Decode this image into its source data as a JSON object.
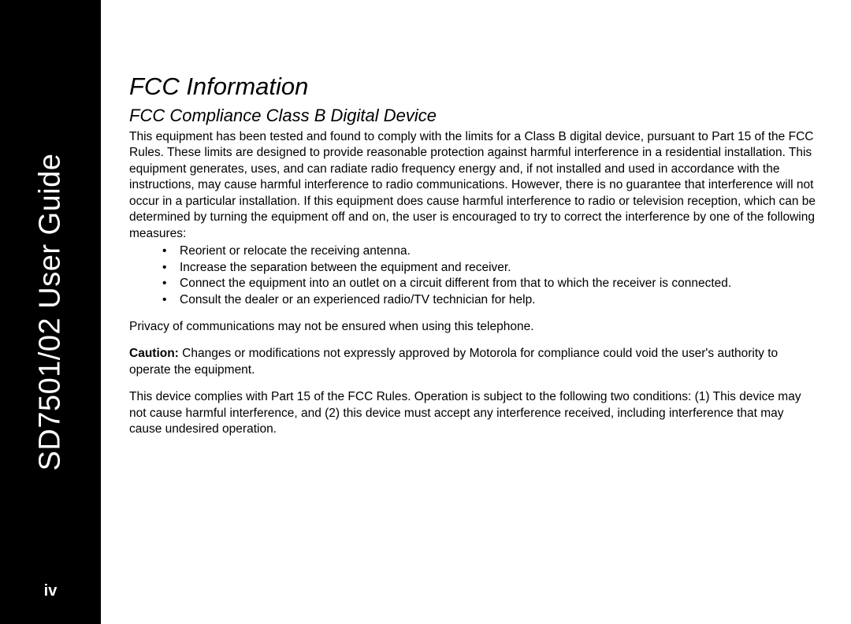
{
  "sidebar": {
    "spine": "SD7501/02 User Guide",
    "page_number": "iv"
  },
  "headings": {
    "title": "FCC Information",
    "subtitle": "FCC Compliance Class B Digital Device"
  },
  "body": {
    "intro": "This equipment has been tested and found to comply with the limits for a Class B digital device, pursuant to Part 15 of the FCC Rules. These limits are designed to provide reasonable protection against harmful interference in a residential installation. This equipment generates, uses, and can radiate radio frequency energy and, if not installed and used in accordance with the instructions, may cause harmful interference to radio communications. However, there is no guarantee that interference will not occur in a particular installation. If this equipment does cause harmful interference to radio or television reception, which can be determined by turning the equipment off and on, the user is encouraged to try to correct the interference by one of the following measures:",
    "bullets": [
      "Reorient or relocate the receiving antenna.",
      "Increase the separation between the equipment and receiver.",
      "Connect the equipment into an outlet on a circuit different from that to which the receiver is connected.",
      "Consult the dealer or an experienced radio/TV technician for help."
    ],
    "privacy": "Privacy of communications may not be ensured when using this telephone.",
    "caution_label": "Caution:",
    "caution_text": " Changes or modifications not expressly approved by Motorola for compliance could void the user's authority to operate the equipment.",
    "compliance": "This device complies with Part 15 of the FCC Rules. Operation is subject to the following two conditions: (1) This device may not cause harmful interference, and (2) this device must accept any interference received, including interference that may cause undesired operation."
  }
}
